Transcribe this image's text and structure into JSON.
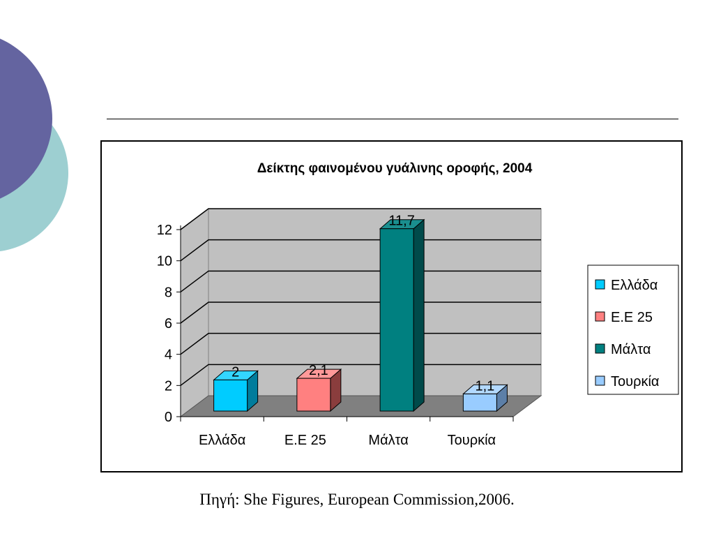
{
  "slide": {
    "source_text": "Πηγή: She Figures, European Commission,2006."
  },
  "colors": {
    "circle_dark": "#6464a0",
    "circle_light": "#9dcfd1",
    "wall": "#c0c0c0",
    "floor": "#808080"
  },
  "chart_data": {
    "type": "bar",
    "title": "Δείκτης φαινομένου γυάλινης οροφής, 2004",
    "categories": [
      "Ελλάδα",
      "Ε.Ε 25",
      "Μάλτα",
      "Τουρκία"
    ],
    "values": [
      2,
      2.1,
      11.7,
      1.1
    ],
    "value_labels": [
      "2",
      "2,1",
      "11,7",
      "1,1"
    ],
    "bar_colors": [
      "#00ccff",
      "#ff8080",
      "#008080",
      "#99ccff"
    ],
    "bar_side_colors": [
      "#007c9c",
      "#8a3d3d",
      "#004a4a",
      "#5c7fa8"
    ],
    "bar_top_colors": [
      "#33d6ff",
      "#ff9999",
      "#1a8f8f",
      "#b3d9ff"
    ],
    "ylim": [
      0,
      12
    ],
    "yticks": [
      "0",
      "2",
      "4",
      "6",
      "8",
      "10",
      "12"
    ],
    "xlabel": "",
    "ylabel": "",
    "grid": true,
    "legend": {
      "position": "right",
      "entries": [
        "Ελλάδα",
        "Ε.Ε 25",
        "Μάλτα",
        "Τουρκία"
      ]
    }
  }
}
